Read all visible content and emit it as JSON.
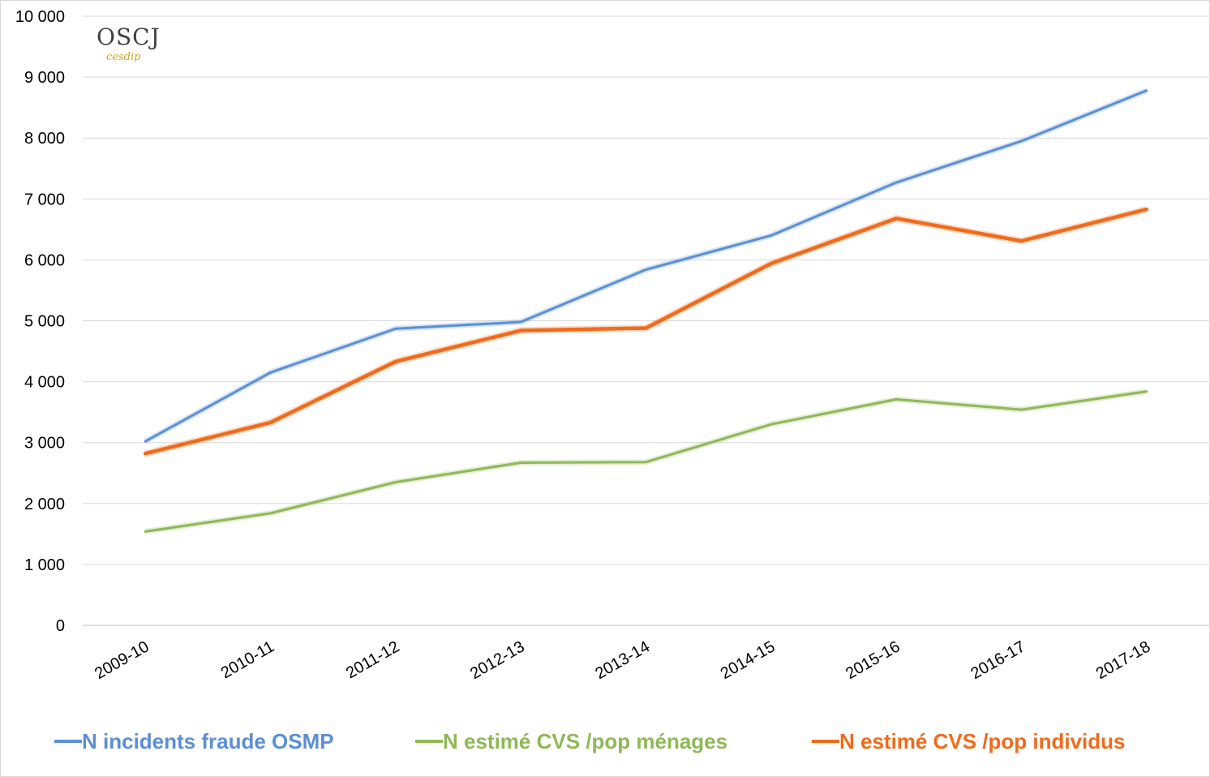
{
  "logo": {
    "main": "OSCJ",
    "sub": "cesdip"
  },
  "chart_data": {
    "type": "line",
    "categories": [
      "2009-10",
      "2010-11",
      "2011-12",
      "2012-13",
      "2013-14",
      "2014-15",
      "2015-16",
      "2016-17",
      "2017-18"
    ],
    "ylim": [
      0,
      10000
    ],
    "yticks": [
      0,
      1000,
      2000,
      3000,
      4000,
      5000,
      6000,
      7000,
      8000,
      9000,
      10000
    ],
    "ytick_labels": [
      "0",
      "1 000",
      "2 000",
      "3 000",
      "4 000",
      "5 000",
      "6 000",
      "7 000",
      "8 000",
      "9 000",
      "10 000"
    ],
    "grid": true,
    "legend_position": "bottom",
    "series": [
      {
        "name": "N incidents fraude OSMP",
        "color": "#5b8fd6",
        "values": [
          3020,
          4150,
          4870,
          4980,
          5840,
          6400,
          7270,
          7950,
          8780
        ]
      },
      {
        "name": "N estimé CVS /pop ménages",
        "color": "#8fb956",
        "values": [
          1540,
          1840,
          2350,
          2670,
          2680,
          3300,
          3710,
          3540,
          3840
        ]
      },
      {
        "name": "N estimé CVS /pop individus",
        "color": "#f26a1b",
        "values": [
          2820,
          3330,
          4330,
          4840,
          4880,
          5940,
          6680,
          6310,
          6830
        ]
      }
    ]
  }
}
